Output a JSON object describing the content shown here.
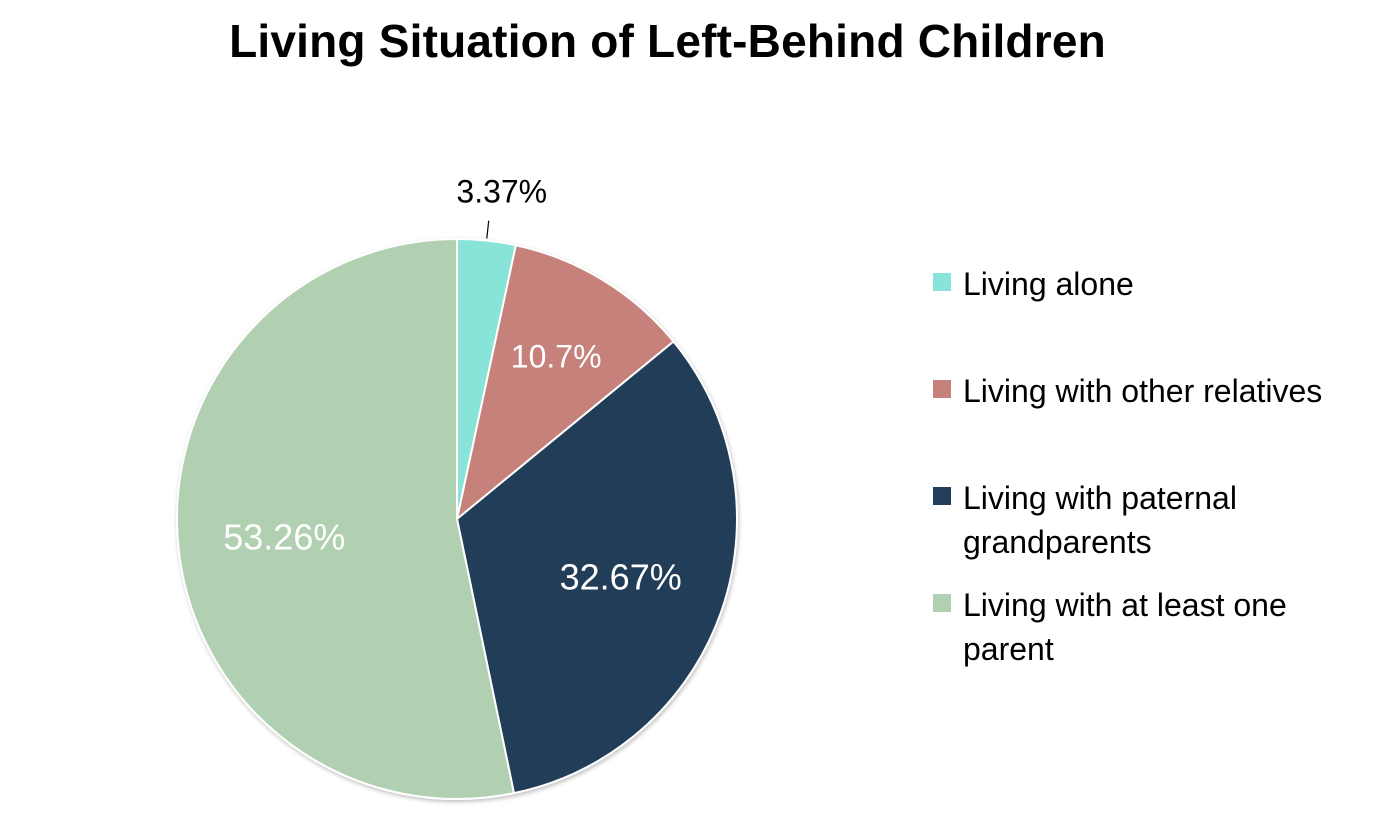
{
  "chart_data": {
    "type": "pie",
    "title": "Living Situation of Left-Behind Children",
    "start_angle_deg": 0,
    "direction": "clockwise",
    "legend_position": "right",
    "slices": [
      {
        "label": "Living alone",
        "value": 3.37,
        "display": "3.37%",
        "color": "#88E3D8",
        "label_placement": "outside",
        "label_color": "#000000"
      },
      {
        "label": "Living with other relatives",
        "value": 10.7,
        "display": "10.7%",
        "color": "#C5817A",
        "label_placement": "inside",
        "label_color": "#ffffff"
      },
      {
        "label": "Living with paternal grandparents",
        "value": 32.67,
        "display": "32.67%",
        "color": "#243D59",
        "label_placement": "inside",
        "label_color": "#ffffff"
      },
      {
        "label": "Living with at least one parent",
        "value": 53.26,
        "display": "53.26%",
        "color": "#B0D0B1",
        "label_placement": "inside",
        "label_color": "#ffffff"
      }
    ]
  }
}
